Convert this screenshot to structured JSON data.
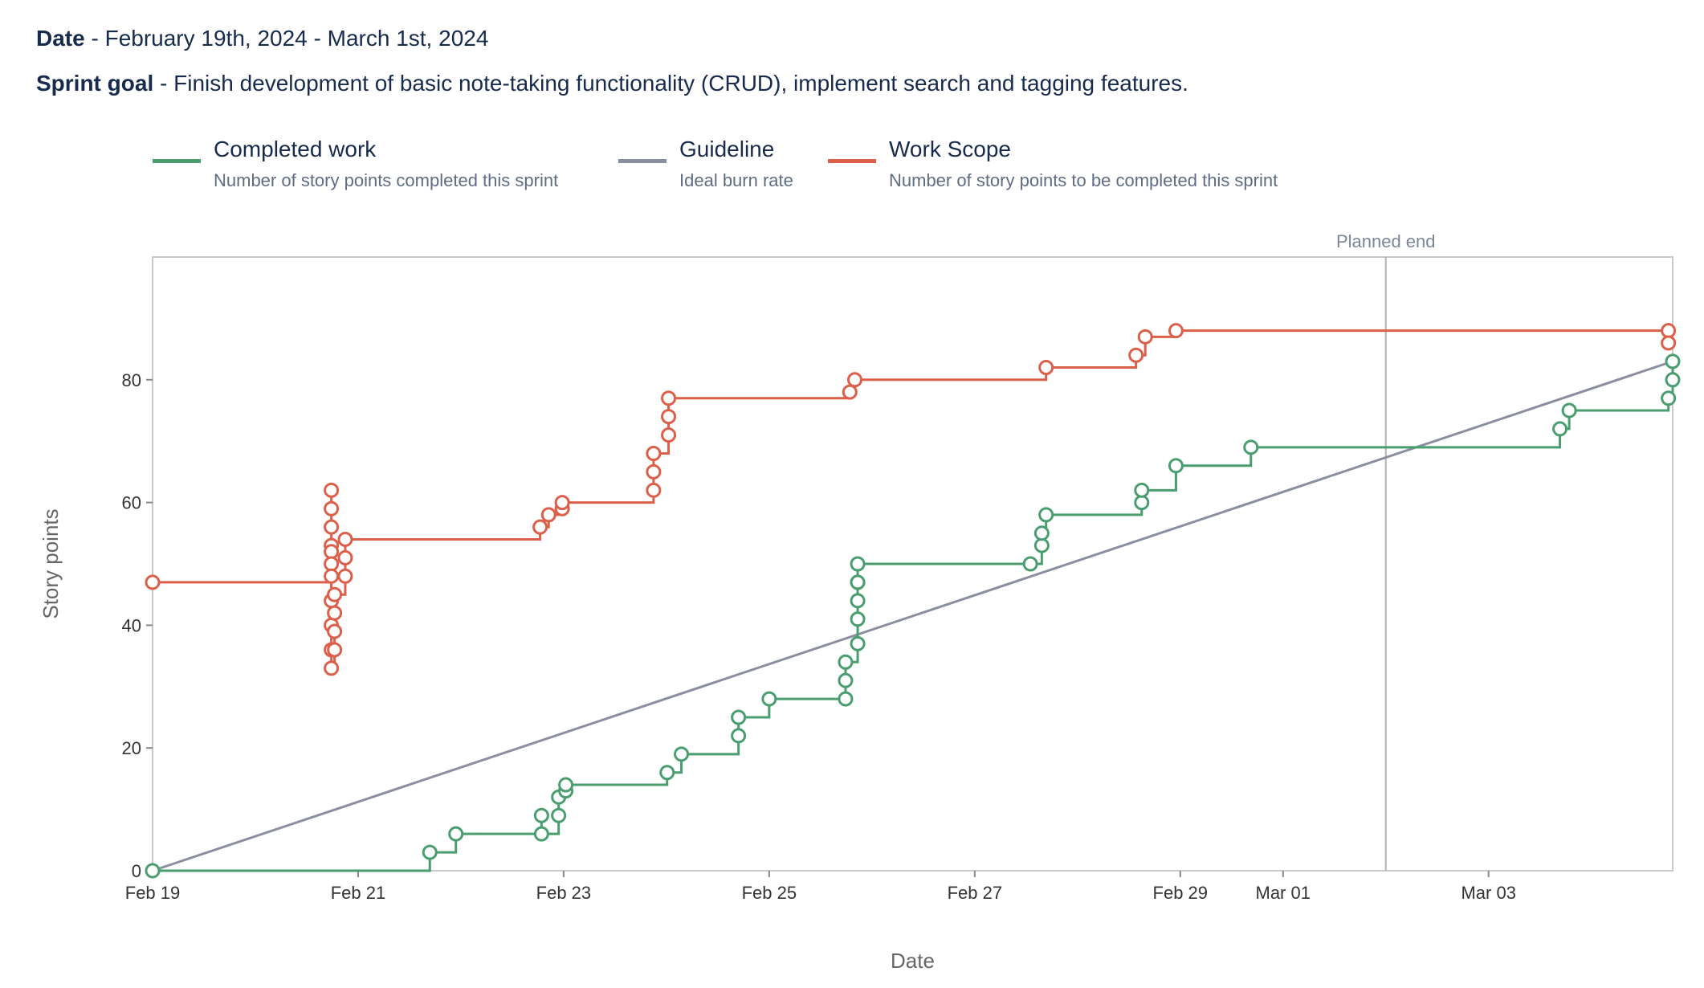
{
  "header": {
    "date_label": "Date",
    "date_value": " - February 19th, 2024 - March 1st, 2024",
    "goal_label": "Sprint goal",
    "goal_value": " - Finish development of basic note-taking functionality (CRUD), implement search and tagging features."
  },
  "legend": [
    {
      "title": "Completed work",
      "description": "Number of story points completed this sprint",
      "color": "#4a9d6f"
    },
    {
      "title": "Guideline",
      "description": "Ideal burn rate",
      "color": "#8a8fa0"
    },
    {
      "title": "Work Scope",
      "description": "Number of story points to be completed this sprint",
      "color": "#dc5f4a"
    }
  ],
  "chart_data": {
    "type": "line",
    "xlabel": "Date",
    "ylabel": "Story points",
    "x_axis": {
      "type": "date",
      "range": [
        "2024-02-19",
        "2024-03-04T19:00"
      ],
      "ticks": [
        {
          "date": "2024-02-19",
          "label": "Feb 19"
        },
        {
          "date": "2024-02-21",
          "label": "Feb 21"
        },
        {
          "date": "2024-02-23",
          "label": "Feb 23"
        },
        {
          "date": "2024-02-25",
          "label": "Feb 25"
        },
        {
          "date": "2024-02-27",
          "label": "Feb 27"
        },
        {
          "date": "2024-02-29",
          "label": "Feb 29"
        },
        {
          "date": "2024-03-01",
          "label": "Mar 01"
        },
        {
          "date": "2024-03-03",
          "label": "Mar 03"
        }
      ]
    },
    "y_axis": {
      "range": [
        0,
        100
      ],
      "ticks": [
        0,
        20,
        40,
        60,
        80
      ]
    },
    "grid": false,
    "planned_end": {
      "date": "2024-03-02",
      "label": "Planned end"
    },
    "series": [
      {
        "name": "Work Scope",
        "style": "step",
        "color": "#dc5f4a",
        "points": [
          [
            "2024-02-19T00:00",
            47
          ],
          [
            "2024-02-20T17:45",
            62
          ],
          [
            "2024-02-20T17:45",
            59
          ],
          [
            "2024-02-20T17:45",
            56
          ],
          [
            "2024-02-20T17:45",
            53
          ],
          [
            "2024-02-20T17:45",
            52
          ],
          [
            "2024-02-20T17:45",
            50
          ],
          [
            "2024-02-20T17:45",
            48
          ],
          [
            "2024-02-20T17:45",
            44
          ],
          [
            "2024-02-20T17:45",
            40
          ],
          [
            "2024-02-20T17:45",
            36
          ],
          [
            "2024-02-20T17:45",
            33
          ],
          [
            "2024-02-20T18:30",
            36
          ],
          [
            "2024-02-20T18:30",
            39
          ],
          [
            "2024-02-20T18:30",
            42
          ],
          [
            "2024-02-20T18:30",
            45
          ],
          [
            "2024-02-20T21:00",
            48
          ],
          [
            "2024-02-20T21:00",
            51
          ],
          [
            "2024-02-20T21:00",
            54
          ],
          [
            "2024-02-22T18:30",
            56
          ],
          [
            "2024-02-22T20:30",
            58
          ],
          [
            "2024-02-22T23:40",
            59
          ],
          [
            "2024-02-22T23:40",
            60
          ],
          [
            "2024-02-23T21:00",
            62
          ],
          [
            "2024-02-23T21:00",
            65
          ],
          [
            "2024-02-23T21:00",
            68
          ],
          [
            "2024-02-24T00:30",
            71
          ],
          [
            "2024-02-24T00:30",
            74
          ],
          [
            "2024-02-24T00:30",
            77
          ],
          [
            "2024-02-25T18:50",
            78
          ],
          [
            "2024-02-25T20:00",
            80
          ],
          [
            "2024-02-27T16:40",
            82
          ],
          [
            "2024-02-28T13:40",
            84
          ],
          [
            "2024-02-28T15:50",
            87
          ],
          [
            "2024-02-28T23:00",
            88
          ],
          [
            "2024-03-04T18:00",
            88
          ],
          [
            "2024-03-04T18:00",
            86
          ]
        ]
      },
      {
        "name": "Guideline",
        "style": "line",
        "color": "#8a8fa0",
        "points": [
          [
            "2024-02-19T00:00",
            0
          ],
          [
            "2024-03-04T19:00",
            83
          ]
        ]
      },
      {
        "name": "Completed work",
        "style": "step",
        "color": "#4a9d6f",
        "points": [
          [
            "2024-02-19T00:00",
            0
          ],
          [
            "2024-02-21T16:45",
            3
          ],
          [
            "2024-02-21T22:50",
            6
          ],
          [
            "2024-02-22T18:50",
            9
          ],
          [
            "2024-02-22T18:50",
            6
          ],
          [
            "2024-02-22T22:50",
            9
          ],
          [
            "2024-02-22T22:50",
            12
          ],
          [
            "2024-02-23T00:30",
            13
          ],
          [
            "2024-02-23T00:30",
            14
          ],
          [
            "2024-02-24T00:10",
            16
          ],
          [
            "2024-02-24T03:30",
            19
          ],
          [
            "2024-02-24T16:50",
            22
          ],
          [
            "2024-02-24T16:50",
            25
          ],
          [
            "2024-02-25T00:00",
            28
          ],
          [
            "2024-02-25T17:50",
            28
          ],
          [
            "2024-02-25T17:50",
            31
          ],
          [
            "2024-02-25T17:50",
            34
          ],
          [
            "2024-02-25T20:40",
            37
          ],
          [
            "2024-02-25T20:40",
            41
          ],
          [
            "2024-02-25T20:40",
            44
          ],
          [
            "2024-02-25T20:40",
            47
          ],
          [
            "2024-02-25T20:40",
            47
          ],
          [
            "2024-02-25T20:40",
            50
          ],
          [
            "2024-02-27T13:00",
            50
          ],
          [
            "2024-02-27T15:40",
            53
          ],
          [
            "2024-02-27T15:40",
            55
          ],
          [
            "2024-02-27T16:40",
            58
          ],
          [
            "2024-02-28T15:00",
            60
          ],
          [
            "2024-02-28T15:00",
            62
          ],
          [
            "2024-02-28T23:00",
            66
          ],
          [
            "2024-02-29T16:30",
            69
          ],
          [
            "2024-03-03T16:40",
            72
          ],
          [
            "2024-03-03T18:50",
            75
          ],
          [
            "2024-03-04T18:00",
            77
          ],
          [
            "2024-03-04T19:00",
            80
          ],
          [
            "2024-03-04T19:00",
            83
          ]
        ]
      }
    ]
  }
}
